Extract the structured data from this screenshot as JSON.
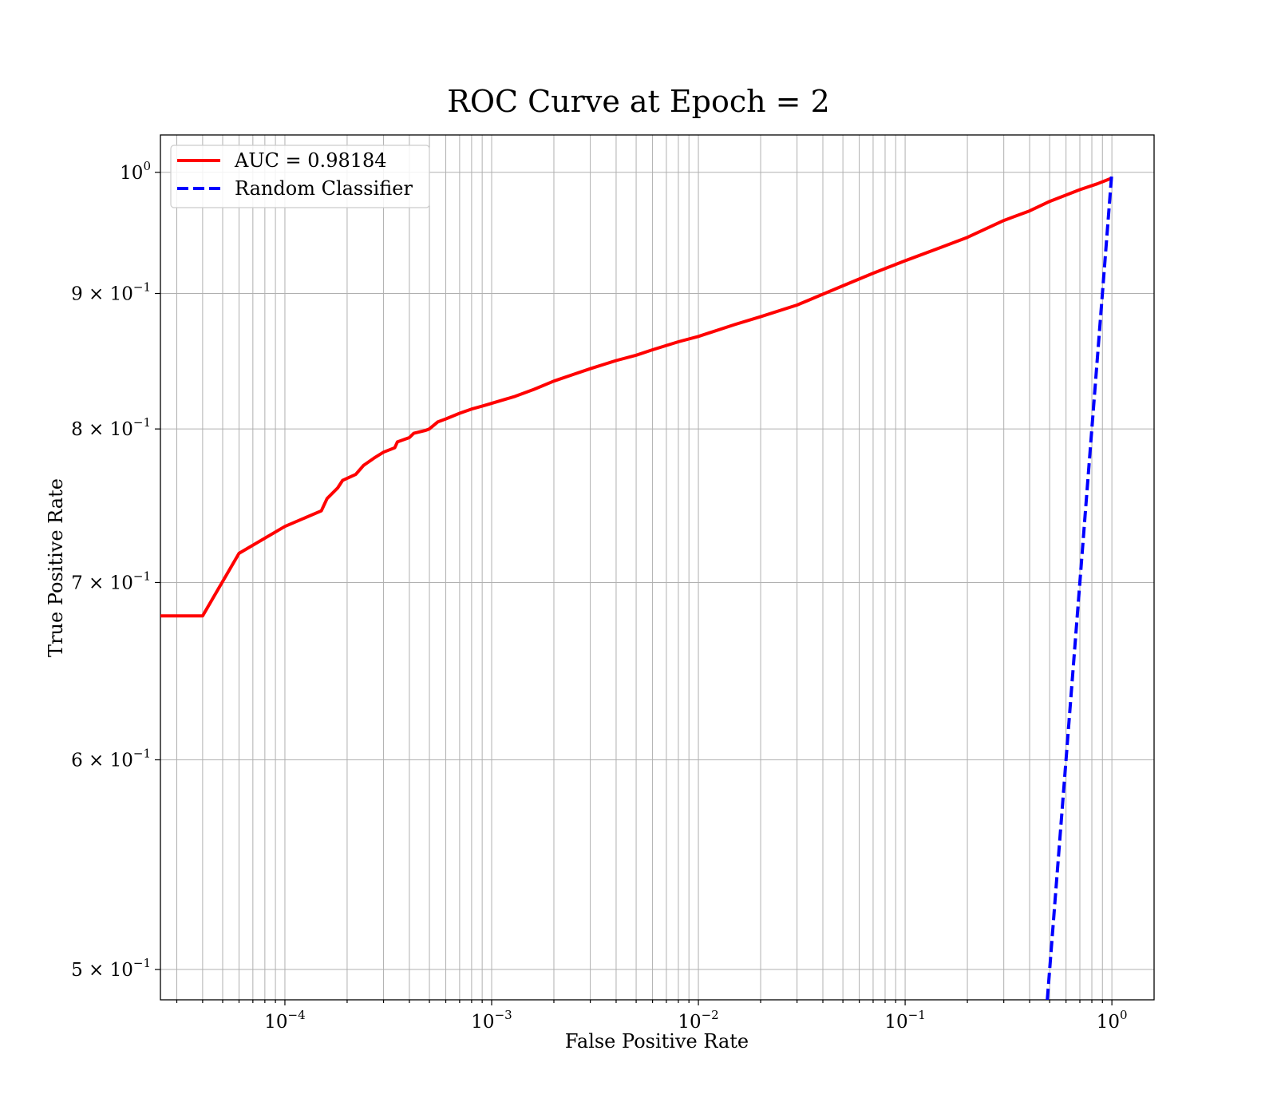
{
  "chart_data": {
    "type": "line",
    "title": "ROC Curve at Epoch = 2",
    "xlabel": "False Positive Rate",
    "ylabel": "True Positive Rate",
    "xscale": "log",
    "yscale": "log",
    "xlim": [
      2.5e-05,
      1.6
    ],
    "ylim": [
      0.487,
      1.033
    ],
    "grid": "major and minor",
    "legend_position": "top-left",
    "x_ticks": [
      {
        "value": 0.0001,
        "base": "10",
        "exp": "−4"
      },
      {
        "value": 0.001,
        "base": "10",
        "exp": "−3"
      },
      {
        "value": 0.01,
        "base": "10",
        "exp": "−2"
      },
      {
        "value": 0.1,
        "base": "10",
        "exp": "−1"
      },
      {
        "value": 1,
        "base": "10",
        "exp": "0"
      }
    ],
    "y_ticks": [
      {
        "value": 1.0,
        "base": "10",
        "exp": "0"
      },
      {
        "value": 0.9,
        "base": "9 × 10",
        "exp": "−1"
      },
      {
        "value": 0.8,
        "base": "8 × 10",
        "exp": "−1"
      },
      {
        "value": 0.7,
        "base": "7 × 10",
        "exp": "−1"
      },
      {
        "value": 0.6,
        "base": "6 × 10",
        "exp": "−1"
      },
      {
        "value": 0.5,
        "base": "5 × 10",
        "exp": "−1"
      }
    ],
    "series": [
      {
        "name": "AUC = 0.98184",
        "color": "#ff0000",
        "style": "solid",
        "x": [
          2.5e-05,
          4e-05,
          6e-05,
          0.0001,
          0.00015,
          0.00016,
          0.00018,
          0.00019,
          0.00022,
          0.00024,
          0.00027,
          0.0003,
          0.00034,
          0.00035,
          0.0004,
          0.00042,
          0.00048,
          0.0005,
          0.00055,
          0.0006,
          0.0007,
          0.0008,
          0.0009,
          0.001,
          0.0013,
          0.0016,
          0.002,
          0.0025,
          0.003,
          0.004,
          0.005,
          0.006,
          0.008,
          0.01,
          0.015,
          0.02,
          0.03,
          0.05,
          0.07,
          0.1,
          0.15,
          0.2,
          0.3,
          0.4,
          0.5,
          0.7,
          0.85,
          1.0
        ],
        "y": [
          0.68,
          0.68,
          0.718,
          0.735,
          0.745,
          0.753,
          0.76,
          0.765,
          0.769,
          0.775,
          0.78,
          0.784,
          0.787,
          0.791,
          0.794,
          0.797,
          0.799,
          0.8,
          0.805,
          0.807,
          0.811,
          0.814,
          0.816,
          0.818,
          0.823,
          0.828,
          0.834,
          0.839,
          0.843,
          0.849,
          0.853,
          0.857,
          0.863,
          0.867,
          0.876,
          0.882,
          0.891,
          0.906,
          0.916,
          0.926,
          0.937,
          0.945,
          0.959,
          0.967,
          0.975,
          0.985,
          0.99,
          0.995
        ]
      },
      {
        "name": "Random Classifier",
        "color": "#0000ff",
        "style": "dashed",
        "x": [
          0.487,
          1.0
        ],
        "y": [
          0.487,
          1.0
        ]
      }
    ]
  }
}
